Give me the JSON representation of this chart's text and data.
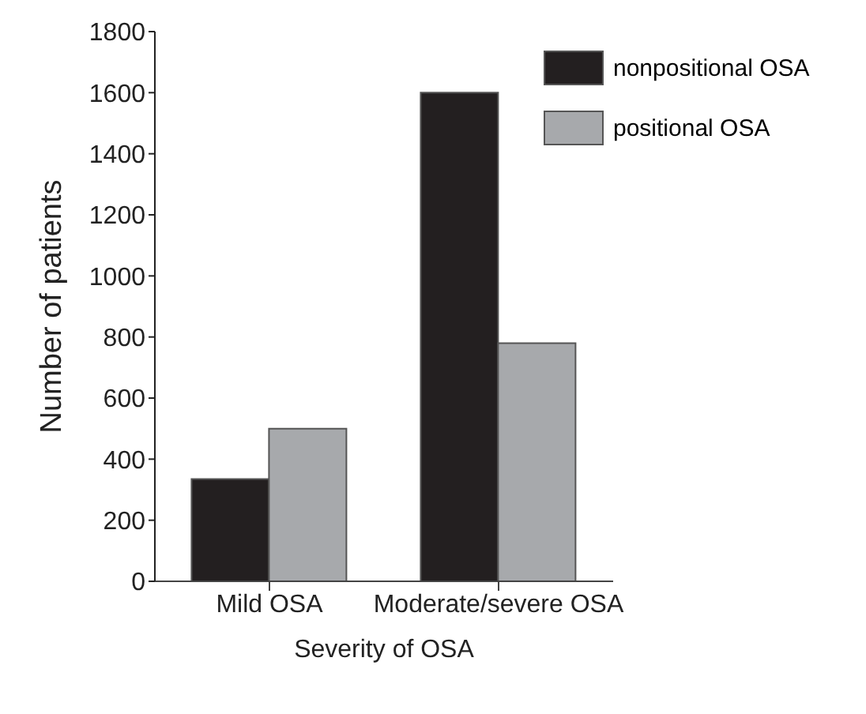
{
  "chart_data": {
    "type": "bar",
    "xlabel": "Severity of OSA",
    "ylabel": "Number of patients",
    "categories": [
      "Mild OSA",
      "Moderate/severe OSA"
    ],
    "series": [
      {
        "name": "nonpositional OSA",
        "color": "#231f20",
        "values": [
          335,
          1600
        ]
      },
      {
        "name": "positional OSA",
        "color": "#a7a9ac",
        "values": [
          500,
          780
        ]
      }
    ],
    "ylim": [
      0,
      1800
    ],
    "yticks": [
      0,
      200,
      400,
      600,
      800,
      1000,
      1200,
      1400,
      1600,
      1800
    ],
    "grid": false,
    "legend": "top right"
  }
}
